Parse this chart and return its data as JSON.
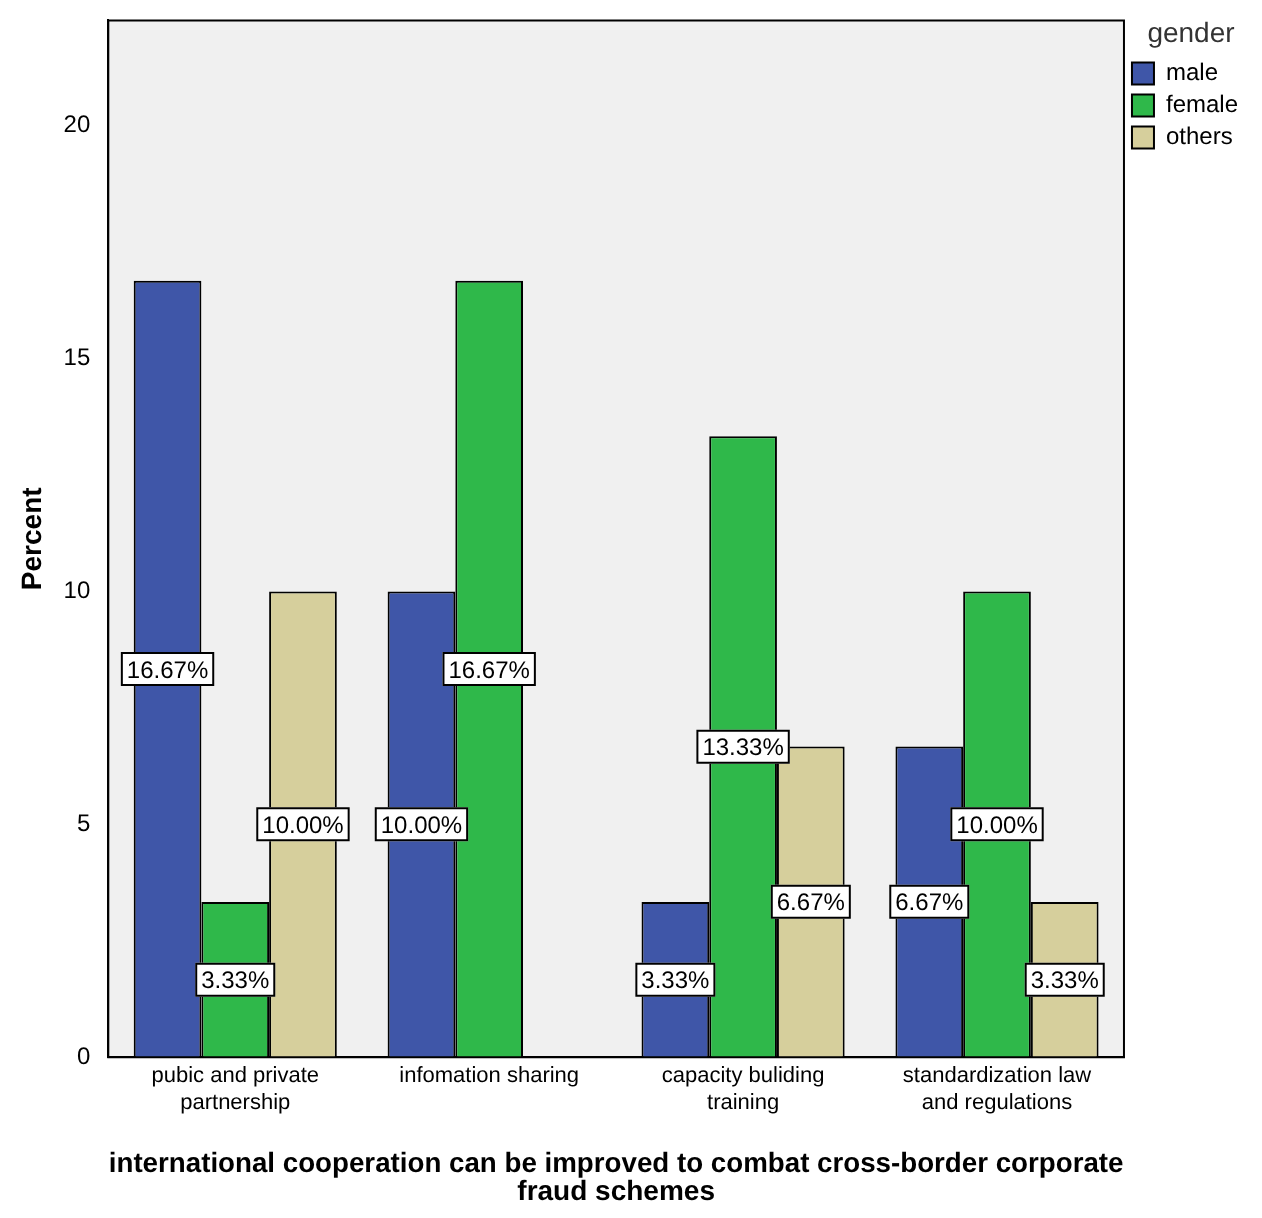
{
  "chart_data": {
    "type": "bar",
    "xlabel": "international cooperation can be improved to combat cross-border corporate fraud schemes",
    "ylabel": "Percent",
    "legend_title": "gender",
    "legend": "top right",
    "categories": [
      "pubic and private partnership",
      "infomation sharing",
      "capacity buliding training",
      "standardization law and regulations"
    ],
    "series": [
      {
        "name": "male",
        "color": "#3f56a8",
        "values": [
          16.67,
          10.0,
          3.33,
          6.67
        ],
        "value_labels": [
          "16.67%",
          "10.00%",
          "3.33%",
          "6.67%"
        ]
      },
      {
        "name": "female",
        "color": "#2fb84a",
        "values": [
          3.33,
          16.67,
          13.33,
          10.0
        ],
        "value_labels": [
          "3.33%",
          "16.67%",
          "13.33%",
          "10.00%"
        ]
      },
      {
        "name": "others",
        "color": "#d6cf9c",
        "values": [
          10.0,
          null,
          6.67,
          3.33
        ],
        "value_labels": [
          "10.00%",
          null,
          "6.67%",
          "3.33%"
        ]
      }
    ],
    "ylim": [
      0,
      22.26
    ],
    "yticks": [
      0,
      5,
      10,
      15,
      20
    ],
    "grid": false
  }
}
